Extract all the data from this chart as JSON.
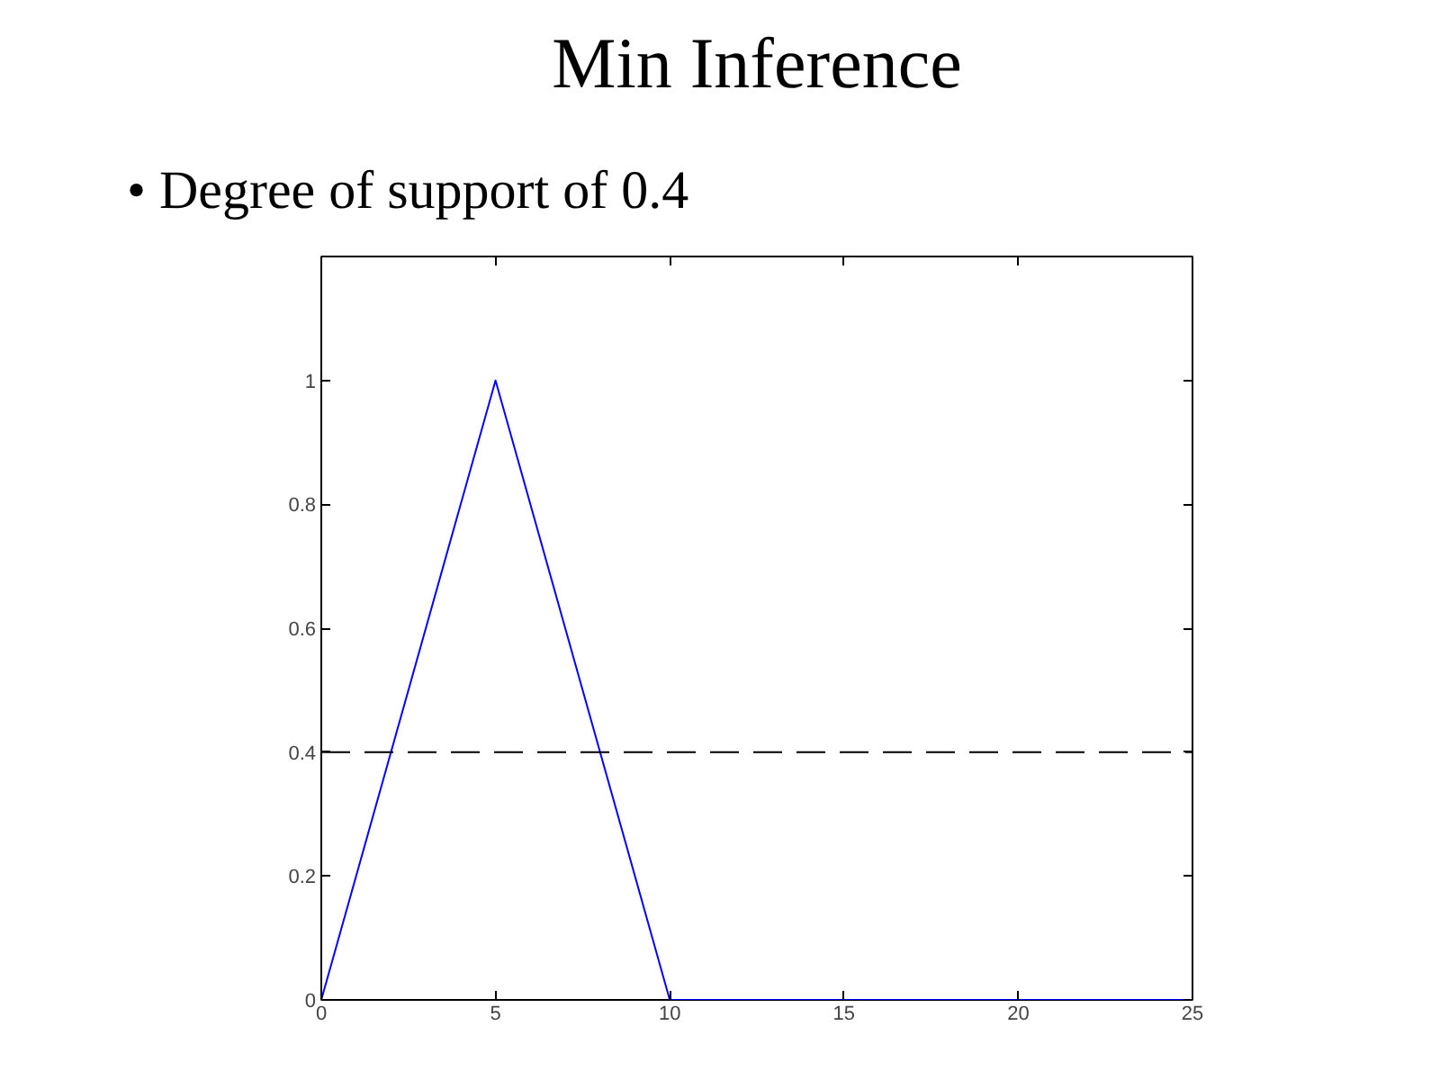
{
  "chart_data": {
    "type": "line",
    "title": "Min Inference",
    "subtitle": "• Degree of support of 0.4",
    "x": [
      0,
      5,
      10,
      25
    ],
    "series": [
      {
        "color": "#0000ff",
        "values": [
          0,
          1,
          0,
          0
        ]
      }
    ],
    "xlim": [
      0,
      25
    ],
    "xticks": [
      0,
      5,
      10,
      15,
      20,
      25
    ],
    "ylim": [
      0,
      1.2
    ],
    "yticks": [
      0,
      0.2,
      0.4,
      0.6,
      0.8,
      1
    ],
    "ref_lines": [
      {
        "axis": "y",
        "value": 0.4,
        "color": "#000000",
        "line_style": "dashed"
      }
    ],
    "grid": false,
    "marker": "none",
    "line_style": "solid"
  }
}
